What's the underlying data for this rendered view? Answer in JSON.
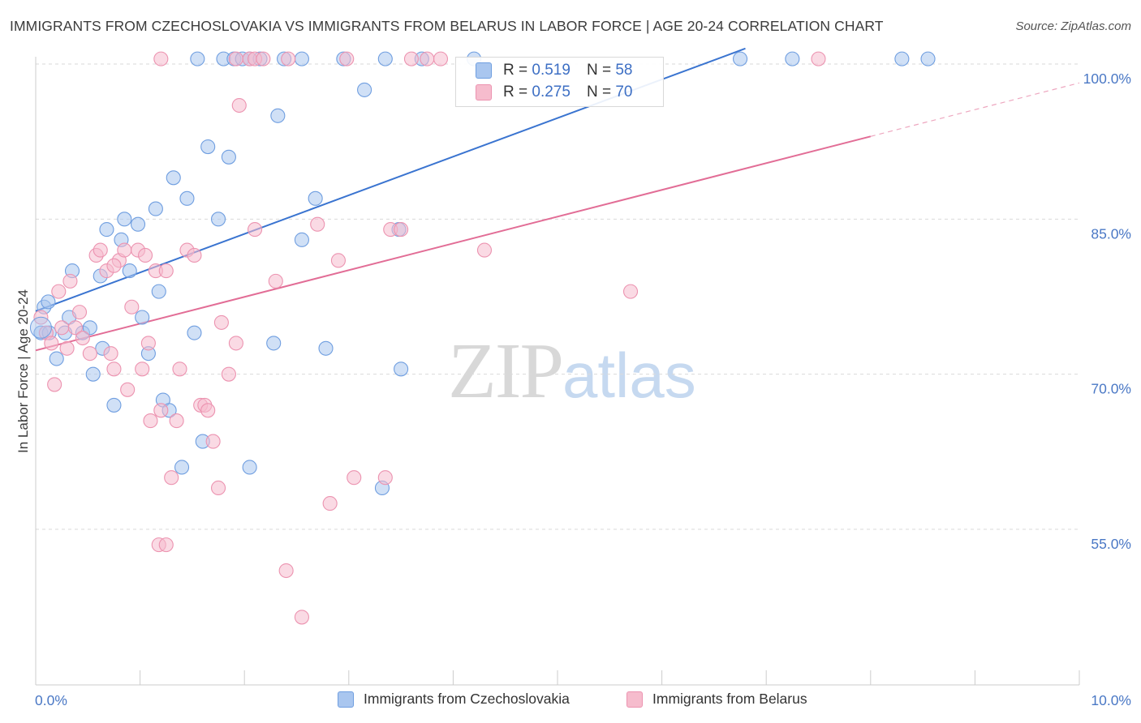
{
  "title": "IMMIGRANTS FROM CZECHOSLOVAKIA VS IMMIGRANTS FROM BELARUS IN LABOR FORCE | AGE 20-24 CORRELATION CHART",
  "source": "Source: ZipAtlas.com",
  "watermark": {
    "zip": "ZIP",
    "atlas": "atlas"
  },
  "colors": {
    "blue_fill": "#a9c6ef",
    "blue_stroke": "#6f9ee0",
    "blue_line": "#3a74d0",
    "pink_fill": "#f6bccd",
    "pink_stroke": "#ec93b0",
    "pink_line": "#e26d96",
    "tick_text": "#4a78c5",
    "grid": "#dadada"
  },
  "stats": [
    {
      "r_label": "R =",
      "r": "0.519",
      "n_label": "N =",
      "n": "58"
    },
    {
      "r_label": "R =",
      "r": "0.275",
      "n_label": "N =",
      "n": "70"
    }
  ],
  "chart_data": {
    "type": "scatter",
    "title": "IMMIGRANTS FROM CZECHOSLOVAKIA VS IMMIGRANTS FROM BELARUS IN LABOR FORCE | AGE 20-24 CORRELATION CHART",
    "xlabel": "",
    "ylabel": "In Labor Force | Age 20-24",
    "xlim": [
      0,
      10
    ],
    "ylim": [
      40,
      101
    ],
    "x_tick_labels": [
      "0.0%",
      "10.0%"
    ],
    "y_ticks": [
      55,
      70,
      85,
      100
    ],
    "y_tick_labels": [
      "55.0%",
      "70.0%",
      "85.0%",
      "100.0%"
    ],
    "grid": true,
    "legend_position": "bottom",
    "series": [
      {
        "name": "Immigrants from Czechoslovakia",
        "color": "#a9c6ef",
        "trend": {
          "x": [
            0.0,
            6.8
          ],
          "y": [
            76.1,
            101.5
          ],
          "extrapolated_to": 6.8
        },
        "points": [
          [
            0.05,
            74.0
          ],
          [
            0.08,
            76.5
          ],
          [
            0.12,
            77.0
          ],
          [
            0.13,
            74.0
          ],
          [
            0.2,
            71.5
          ],
          [
            0.28,
            74.0
          ],
          [
            0.32,
            75.5
          ],
          [
            0.35,
            80.0
          ],
          [
            0.45,
            74.0
          ],
          [
            0.52,
            74.5
          ],
          [
            0.55,
            70.0
          ],
          [
            0.62,
            79.5
          ],
          [
            0.64,
            72.5
          ],
          [
            0.68,
            84.0
          ],
          [
            0.75,
            67.0
          ],
          [
            0.82,
            83.0
          ],
          [
            0.85,
            85.0
          ],
          [
            0.9,
            80.0
          ],
          [
            0.98,
            84.5
          ],
          [
            1.02,
            75.5
          ],
          [
            1.08,
            72.0
          ],
          [
            1.15,
            86.0
          ],
          [
            1.18,
            78.0
          ],
          [
            1.22,
            67.5
          ],
          [
            1.28,
            66.5
          ],
          [
            1.32,
            89.0
          ],
          [
            1.4,
            61.0
          ],
          [
            1.45,
            87.0
          ],
          [
            1.52,
            74.0
          ],
          [
            1.6,
            63.5
          ],
          [
            1.65,
            92.0
          ],
          [
            1.75,
            85.0
          ],
          [
            1.85,
            91.0
          ],
          [
            2.05,
            61.0
          ],
          [
            2.28,
            73.0
          ],
          [
            2.32,
            95.0
          ],
          [
            2.55,
            83.0
          ],
          [
            2.68,
            87.0
          ],
          [
            2.78,
            72.5
          ],
          [
            3.15,
            97.5
          ],
          [
            3.32,
            59.0
          ],
          [
            3.48,
            84.0
          ],
          [
            3.5,
            70.5
          ],
          [
            1.55,
            100.5
          ],
          [
            1.8,
            100.5
          ],
          [
            1.9,
            100.5
          ],
          [
            1.98,
            100.5
          ],
          [
            2.05,
            100.5
          ],
          [
            2.15,
            100.5
          ],
          [
            2.38,
            100.5
          ],
          [
            2.55,
            100.5
          ],
          [
            2.95,
            100.5
          ],
          [
            3.35,
            100.5
          ],
          [
            3.7,
            100.5
          ],
          [
            4.2,
            100.5
          ],
          [
            6.75,
            100.5
          ],
          [
            7.25,
            100.5
          ],
          [
            8.3,
            100.5
          ],
          [
            8.55,
            100.5
          ]
        ]
      },
      {
        "name": "Immigrants from Belarus",
        "color": "#f6bccd",
        "trend": {
          "x": [
            0.0,
            8.0
          ],
          "y": [
            72.3,
            93.0
          ],
          "extrapolated_to": 10.0
        },
        "points": [
          [
            0.05,
            75.5
          ],
          [
            0.1,
            74.0
          ],
          [
            0.15,
            73.0
          ],
          [
            0.18,
            69.0
          ],
          [
            0.22,
            78.0
          ],
          [
            0.25,
            74.5
          ],
          [
            0.3,
            72.5
          ],
          [
            0.33,
            79.0
          ],
          [
            0.38,
            74.5
          ],
          [
            0.42,
            76.0
          ],
          [
            0.45,
            73.5
          ],
          [
            0.52,
            72.0
          ],
          [
            0.58,
            81.5
          ],
          [
            0.62,
            82.0
          ],
          [
            0.68,
            80.0
          ],
          [
            0.72,
            72.0
          ],
          [
            0.75,
            70.5
          ],
          [
            0.8,
            81.0
          ],
          [
            0.85,
            82.0
          ],
          [
            0.88,
            68.5
          ],
          [
            0.92,
            76.5
          ],
          [
            0.98,
            82.0
          ],
          [
            1.02,
            70.5
          ],
          [
            1.05,
            81.5
          ],
          [
            1.08,
            73.0
          ],
          [
            1.1,
            65.5
          ],
          [
            1.15,
            80.0
          ],
          [
            1.2,
            66.5
          ],
          [
            1.25,
            80.0
          ],
          [
            1.3,
            60.0
          ],
          [
            1.35,
            65.5
          ],
          [
            1.38,
            70.5
          ],
          [
            1.45,
            82.0
          ],
          [
            1.52,
            81.5
          ],
          [
            1.58,
            67.0
          ],
          [
            1.62,
            67.0
          ],
          [
            1.65,
            66.5
          ],
          [
            1.7,
            63.5
          ],
          [
            1.75,
            59.0
          ],
          [
            1.78,
            75.0
          ],
          [
            1.85,
            70.0
          ],
          [
            1.92,
            73.0
          ],
          [
            1.95,
            96.0
          ],
          [
            2.1,
            84.0
          ],
          [
            2.3,
            79.0
          ],
          [
            2.4,
            51.0
          ],
          [
            2.55,
            46.5
          ],
          [
            2.7,
            84.5
          ],
          [
            2.82,
            57.5
          ],
          [
            2.9,
            81.0
          ],
          [
            3.05,
            60.0
          ],
          [
            3.35,
            60.0
          ],
          [
            3.4,
            84.0
          ],
          [
            3.5,
            84.0
          ],
          [
            4.3,
            82.0
          ],
          [
            5.7,
            78.0
          ],
          [
            0.75,
            80.5
          ],
          [
            1.18,
            53.5
          ],
          [
            1.25,
            53.5
          ],
          [
            1.2,
            100.5
          ],
          [
            1.92,
            100.5
          ],
          [
            2.05,
            100.5
          ],
          [
            2.1,
            100.5
          ],
          [
            2.18,
            100.5
          ],
          [
            2.42,
            100.5
          ],
          [
            2.98,
            100.5
          ],
          [
            3.6,
            100.5
          ],
          [
            3.75,
            100.5
          ],
          [
            3.88,
            100.5
          ],
          [
            7.5,
            100.5
          ]
        ]
      }
    ]
  }
}
